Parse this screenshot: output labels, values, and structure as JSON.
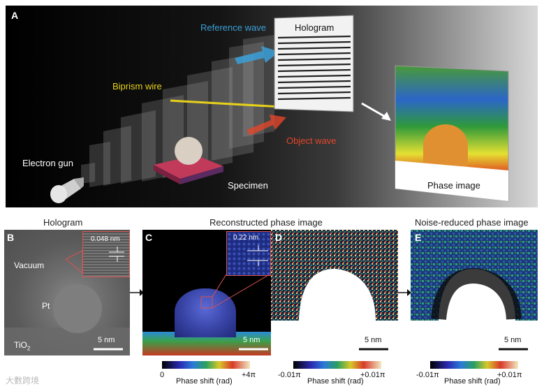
{
  "panel_a": {
    "letter": "A",
    "hologram_label": "Hologram",
    "reference_wave": "Reference wave",
    "biprism_wire": "Biprism wire",
    "object_wave": "Object wave",
    "electron_gun": "Electron gun",
    "specimen": "Specimen",
    "phase_image": "Phase image"
  },
  "panel_b": {
    "title": "Hologram",
    "letter": "B",
    "vacuum": "Vacuum",
    "pt": "Pt",
    "tio2": "TiO",
    "tio2_sub": "2",
    "inset_spacing": "0.048 nm",
    "scalebar": "5 nm"
  },
  "panel_c": {
    "title": "Reconstructed phase image",
    "letter": "C",
    "inset_spacing": "0.22 nm",
    "scalebar": "5 nm",
    "cbar_min": "0",
    "cbar_label": "Phase shift (rad)",
    "cbar_max": "+4π"
  },
  "panel_d": {
    "letter": "D",
    "scalebar": "5 nm",
    "cbar_min": "-0.01π",
    "cbar_label": "Phase shift (rad)",
    "cbar_max": "+0.01π"
  },
  "panel_e": {
    "title": "Noise-reduced phase image",
    "letter": "E",
    "scalebar": "5 nm",
    "cbar_min": "-0.01π",
    "cbar_label": "Phase shift (rad)",
    "cbar_max": "+0.01π"
  },
  "watermark": "大數跨境",
  "colors": {
    "reference_wave": "#3aa0d8",
    "biprism_wire": "#e6d11a",
    "object_wave": "#e2462a"
  }
}
